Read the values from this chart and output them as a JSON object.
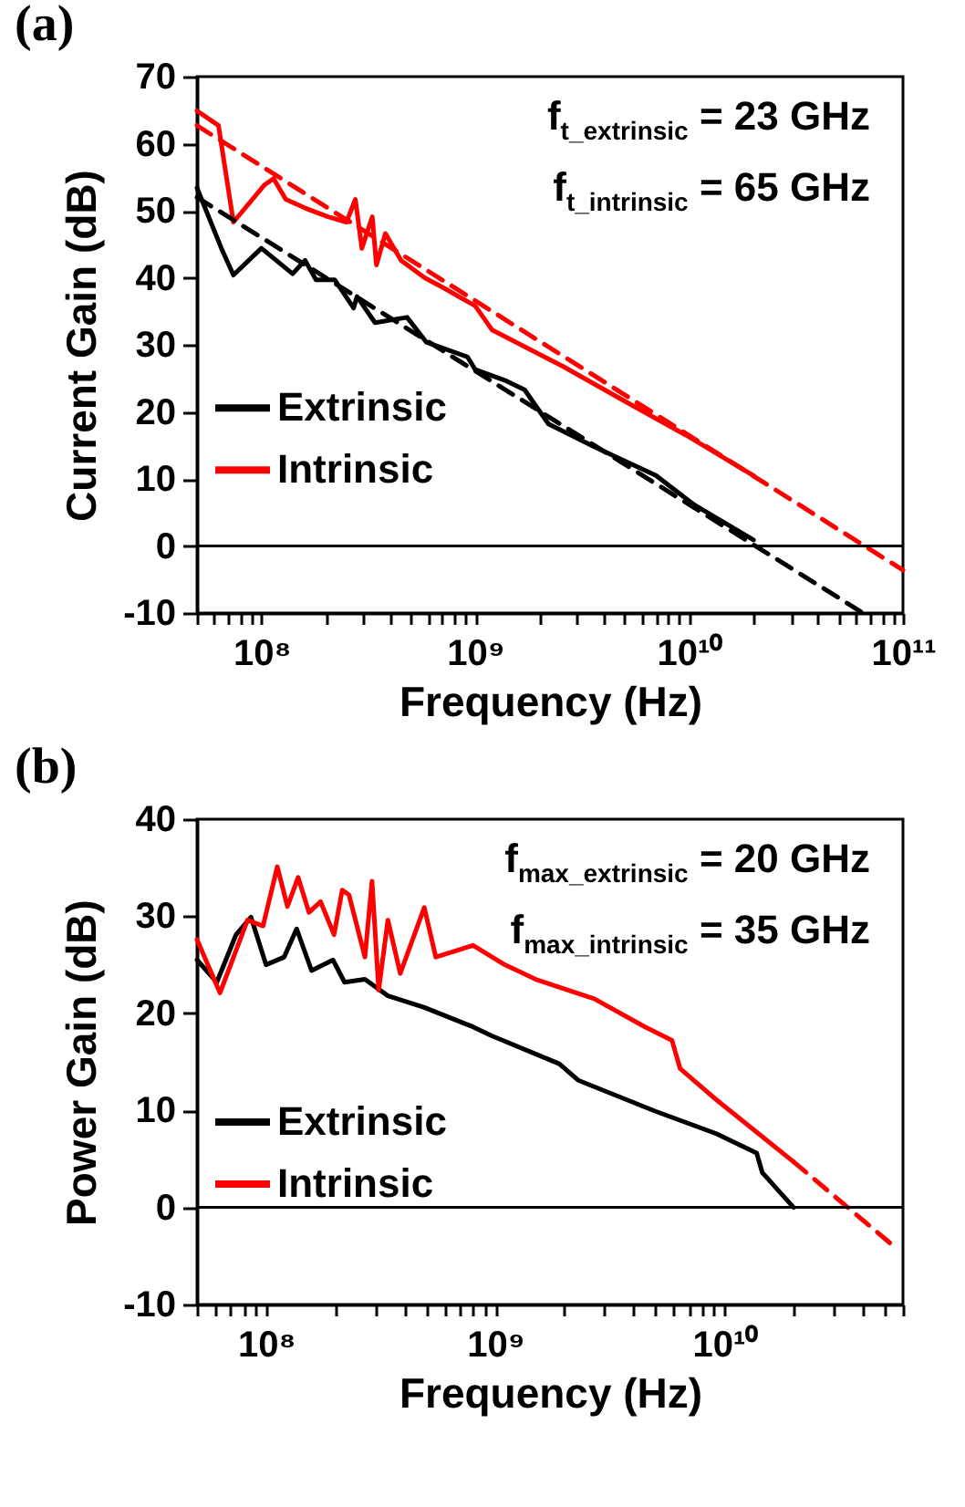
{
  "chart_data": [
    {
      "type": "line",
      "title": "(a)",
      "xlabel": "Frequency (Hz)",
      "ylabel": "Current Gain (dB)",
      "log": "x",
      "grid": false,
      "legend": "bottom left",
      "annotations": [
        "f$_{t_extrinsic}$ = 23 GHz",
        "f$_{t_intrinsic}$ = 65 GHz"
      ],
      "xlim": [
        50000000.0,
        100000000000.0
      ],
      "xticks": [
        {
          "value": 50000000.0,
          "label": null
        },
        {
          "value": 60000000.0,
          "label": null
        },
        {
          "value": 70000000.0,
          "label": null
        },
        {
          "value": 80000000.0,
          "label": null
        },
        {
          "value": 90000000.0,
          "label": null
        },
        {
          "value": 100000000.0,
          "label": "10⁸"
        },
        {
          "value": 200000000.0,
          "label": null
        },
        {
          "value": 300000000.0,
          "label": null
        },
        {
          "value": 400000000.0,
          "label": null
        },
        {
          "value": 500000000.0,
          "label": null
        },
        {
          "value": 600000000.0,
          "label": null
        },
        {
          "value": 700000000.0,
          "label": null
        },
        {
          "value": 800000000.0,
          "label": null
        },
        {
          "value": 900000000.0,
          "label": null
        },
        {
          "value": 1000000000.0,
          "label": "10⁹"
        },
        {
          "value": 2000000000.0,
          "label": null
        },
        {
          "value": 3000000000.0,
          "label": null
        },
        {
          "value": 4000000000.0,
          "label": null
        },
        {
          "value": 5000000000.0,
          "label": null
        },
        {
          "value": 6000000000.0,
          "label": null
        },
        {
          "value": 7000000000.0,
          "label": null
        },
        {
          "value": 8000000000.0,
          "label": null
        },
        {
          "value": 9000000000.0,
          "label": null
        },
        {
          "value": 10000000000.0,
          "label": "10¹⁰"
        },
        {
          "value": 20000000000.0,
          "label": null
        },
        {
          "value": 30000000000.0,
          "label": null
        },
        {
          "value": 40000000000.0,
          "label": null
        },
        {
          "value": 50000000000.0,
          "label": null
        },
        {
          "value": 60000000000.0,
          "label": null
        },
        {
          "value": 70000000000.0,
          "label": null
        },
        {
          "value": 80000000000.0,
          "label": null
        },
        {
          "value": 90000000000.0,
          "label": null
        },
        {
          "value": 100000000000.0,
          "label": "10¹¹"
        }
      ],
      "ylim": [
        -10,
        70
      ],
      "yticks": [
        -10,
        0,
        10,
        20,
        30,
        40,
        50,
        60,
        70
      ],
      "ref_lines": [
        {
          "axis": "y",
          "value": 0,
          "color": "#000000"
        }
      ],
      "series": [
        {
          "name": "Extrinsic",
          "color": "#000000",
          "x": [
            50000000.0,
            65000000.0,
            74000000.0,
            100000000.0,
            140000000.0,
            160000000.0,
            180000000.0,
            220000000.0,
            270000000.0,
            280000000.0,
            340000000.0,
            480000000.0,
            590000000.0,
            920000000.0,
            1000000000.0,
            1400000000.0,
            1700000000.0,
            2200000000.0,
            3600000000.0,
            7000000000.0,
            10500000000.0,
            20000000000.0
          ],
          "values": [
            53.4,
            44.4,
            40.4,
            44.4,
            40.6,
            42.6,
            39.7,
            39.7,
            35.5,
            37.2,
            33.3,
            34.1,
            30.4,
            28.2,
            26.3,
            24.6,
            23.3,
            18.2,
            14.8,
            10.5,
            6.2,
            0.9
          ]
        },
        {
          "name": "Intrinsic",
          "color": "#ff0000",
          "x": [
            50000000.0,
            63000000.0,
            74000000.0,
            103000000.0,
            114000000.0,
            130000000.0,
            160000000.0,
            205000000.0,
            250000000.0,
            275000000.0,
            295000000.0,
            330000000.0,
            345000000.0,
            380000000.0,
            450000000.0,
            580000000.0,
            720000000.0,
            1000000000.0,
            1200000000.0,
            2600000000.0,
            5000000000.0,
            9700000000.0,
            20000000000.0
          ],
          "values": [
            64.9,
            62.7,
            48.3,
            53.8,
            54.8,
            51.7,
            50.4,
            49.1,
            48.3,
            51.7,
            44.4,
            49.1,
            41.9,
            46.6,
            42.6,
            40,
            38.4,
            35.8,
            32.2,
            26.7,
            21.6,
            16.5,
            10.5
          ]
        },
        {
          "type": "line",
          "line_style": "dashed",
          "color": "#000000",
          "x": [
            50000000.0,
            65000000000.0
          ],
          "values": [
            52,
            -10
          ]
        },
        {
          "type": "line",
          "line_style": "dashed",
          "color": "#ff0000",
          "x": [
            50000000.0,
            100000000000.0
          ],
          "values": [
            62.7,
            -3.6
          ]
        }
      ]
    },
    {
      "type": "line",
      "title": "(b)",
      "xlabel": "Frequency (Hz)",
      "ylabel": "Power Gain (dB)",
      "log": "x",
      "grid": false,
      "legend": "bottom left",
      "annotations": [
        "f$_{max_extrinsic}$ = 20 GHz",
        "f$_{max_intrinsic}$ = 35 GHz"
      ],
      "xlim": [
        50000000.0,
        60000000000.0
      ],
      "xticks": [
        {
          "value": 50000000.0,
          "label": null
        },
        {
          "value": 60000000.0,
          "label": null
        },
        {
          "value": 70000000.0,
          "label": null
        },
        {
          "value": 80000000.0,
          "label": null
        },
        {
          "value": 90000000.0,
          "label": null
        },
        {
          "value": 100000000.0,
          "label": "10⁸"
        },
        {
          "value": 200000000.0,
          "label": null
        },
        {
          "value": 300000000.0,
          "label": null
        },
        {
          "value": 400000000.0,
          "label": null
        },
        {
          "value": 500000000.0,
          "label": null
        },
        {
          "value": 600000000.0,
          "label": null
        },
        {
          "value": 700000000.0,
          "label": null
        },
        {
          "value": 800000000.0,
          "label": null
        },
        {
          "value": 900000000.0,
          "label": null
        },
        {
          "value": 1000000000.0,
          "label": "10⁹"
        },
        {
          "value": 2000000000.0,
          "label": null
        },
        {
          "value": 3000000000.0,
          "label": null
        },
        {
          "value": 4000000000.0,
          "label": null
        },
        {
          "value": 5000000000.0,
          "label": null
        },
        {
          "value": 6000000000.0,
          "label": null
        },
        {
          "value": 7000000000.0,
          "label": null
        },
        {
          "value": 8000000000.0,
          "label": null
        },
        {
          "value": 9000000000.0,
          "label": null
        },
        {
          "value": 10000000000.0,
          "label": "10¹⁰"
        },
        {
          "value": 20000000000.0,
          "label": null
        },
        {
          "value": 30000000000.0,
          "label": null
        },
        {
          "value": 40000000000.0,
          "label": null
        },
        {
          "value": 50000000000.0,
          "label": null
        },
        {
          "value": 60000000000.0,
          "label": null
        }
      ],
      "ylim": [
        -10,
        40
      ],
      "yticks": [
        -10,
        0,
        10,
        20,
        30,
        40
      ],
      "ref_lines": [
        {
          "axis": "y",
          "value": 0,
          "color": "#000000"
        }
      ],
      "series": [
        {
          "name": "Extrinsic",
          "color": "#000000",
          "x": [
            50000000.0,
            61000000.0,
            74000000.0,
            86000000.0,
            100000000.0,
            120000000.0,
            136000000.0,
            158000000.0,
            196000000.0,
            220000000.0,
            270000000.0,
            340000000.0,
            490000000.0,
            800000000.0,
            960000000.0,
            1900000000.0,
            2300000000.0,
            5000000000.0,
            9200000000.0,
            13800000000.0,
            14600000000.0,
            20000000000.0
          ],
          "values": [
            25.5,
            23.2,
            28.1,
            29.9,
            25,
            25.8,
            28.7,
            24.4,
            25.5,
            23.2,
            23.5,
            21.8,
            20.6,
            18.6,
            17.7,
            14.8,
            13.1,
            9.9,
            7.6,
            5.6,
            3.6,
            0
          ]
        },
        {
          "name": "Intrinsic",
          "color": "#ff0000",
          "x": [
            50000000.0,
            63000000.0,
            83000000.0,
            97000000.0,
            112000000.0,
            124000000.0,
            138000000.0,
            154000000.0,
            173000000.0,
            198000000.0,
            215000000.0,
            230000000.0,
            270000000.0,
            290000000.0,
            310000000.0,
            340000000.0,
            385000000.0,
            490000000.0,
            550000000.0,
            800000000.0,
            1100000000.0,
            1500000000.0,
            2700000000.0,
            4500000000.0,
            5900000000.0,
            6400000000.0,
            9200000000.0,
            20000000000.0
          ],
          "values": [
            27.6,
            22.1,
            29.6,
            29,
            35.1,
            31,
            34,
            30.4,
            31.5,
            28.1,
            32.7,
            32.2,
            25.8,
            33.6,
            22.4,
            29.6,
            24.1,
            30.9,
            25.8,
            27,
            25,
            23.5,
            21.5,
            18.6,
            17.2,
            14.3,
            11.1,
            4.7
          ]
        },
        {
          "type": "line",
          "line_style": "dashed",
          "color": "#ff0000",
          "x": [
            20000000000.0,
            56000000000.0
          ],
          "values": [
            4.7,
            -4.2
          ]
        }
      ]
    }
  ]
}
